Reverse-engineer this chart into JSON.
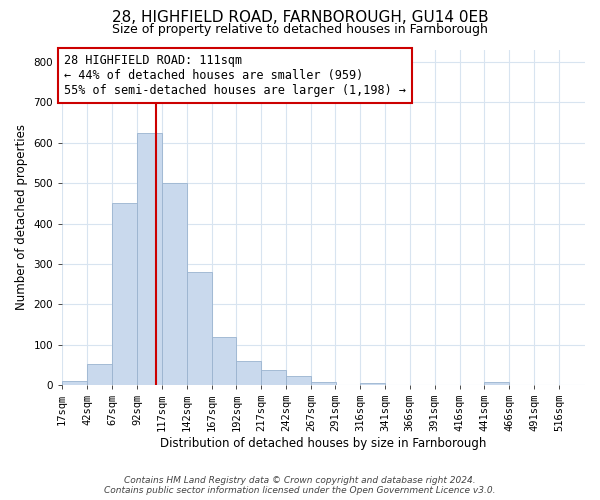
{
  "title": "28, HIGHFIELD ROAD, FARNBOROUGH, GU14 0EB",
  "subtitle": "Size of property relative to detached houses in Farnborough",
  "xlabel": "Distribution of detached houses by size in Farnborough",
  "ylabel": "Number of detached properties",
  "bin_labels": [
    "17sqm",
    "42sqm",
    "67sqm",
    "92sqm",
    "117sqm",
    "142sqm",
    "167sqm",
    "192sqm",
    "217sqm",
    "242sqm",
    "267sqm",
    "291sqm",
    "316sqm",
    "341sqm",
    "366sqm",
    "391sqm",
    "416sqm",
    "441sqm",
    "466sqm",
    "491sqm",
    "516sqm"
  ],
  "bin_edges": [
    17,
    42,
    67,
    92,
    117,
    142,
    167,
    192,
    217,
    242,
    267,
    291,
    316,
    341,
    366,
    391,
    416,
    441,
    466,
    491,
    516
  ],
  "bar_heights": [
    10,
    52,
    450,
    625,
    500,
    280,
    118,
    60,
    37,
    22,
    8,
    0,
    5,
    0,
    0,
    0,
    0,
    7,
    0,
    0,
    0
  ],
  "bar_color": "#c9d9ed",
  "bar_edge_color": "#9ab3cf",
  "property_line_x": 111,
  "property_line_color": "#cc0000",
  "annotation_text": "28 HIGHFIELD ROAD: 111sqm\n← 44% of detached houses are smaller (959)\n55% of semi-detached houses are larger (1,198) →",
  "annotation_box_facecolor": "#ffffff",
  "annotation_box_edge": "#cc0000",
  "ylim": [
    0,
    830
  ],
  "yticks": [
    0,
    100,
    200,
    300,
    400,
    500,
    600,
    700,
    800
  ],
  "footer_text": "Contains HM Land Registry data © Crown copyright and database right 2024.\nContains public sector information licensed under the Open Government Licence v3.0.",
  "bg_color": "#ffffff",
  "plot_bg_color": "#ffffff",
  "grid_color": "#d8e4f0",
  "title_fontsize": 11,
  "subtitle_fontsize": 9,
  "axis_label_fontsize": 8.5,
  "tick_fontsize": 7.5,
  "annotation_fontsize": 8.5,
  "footer_fontsize": 6.5
}
